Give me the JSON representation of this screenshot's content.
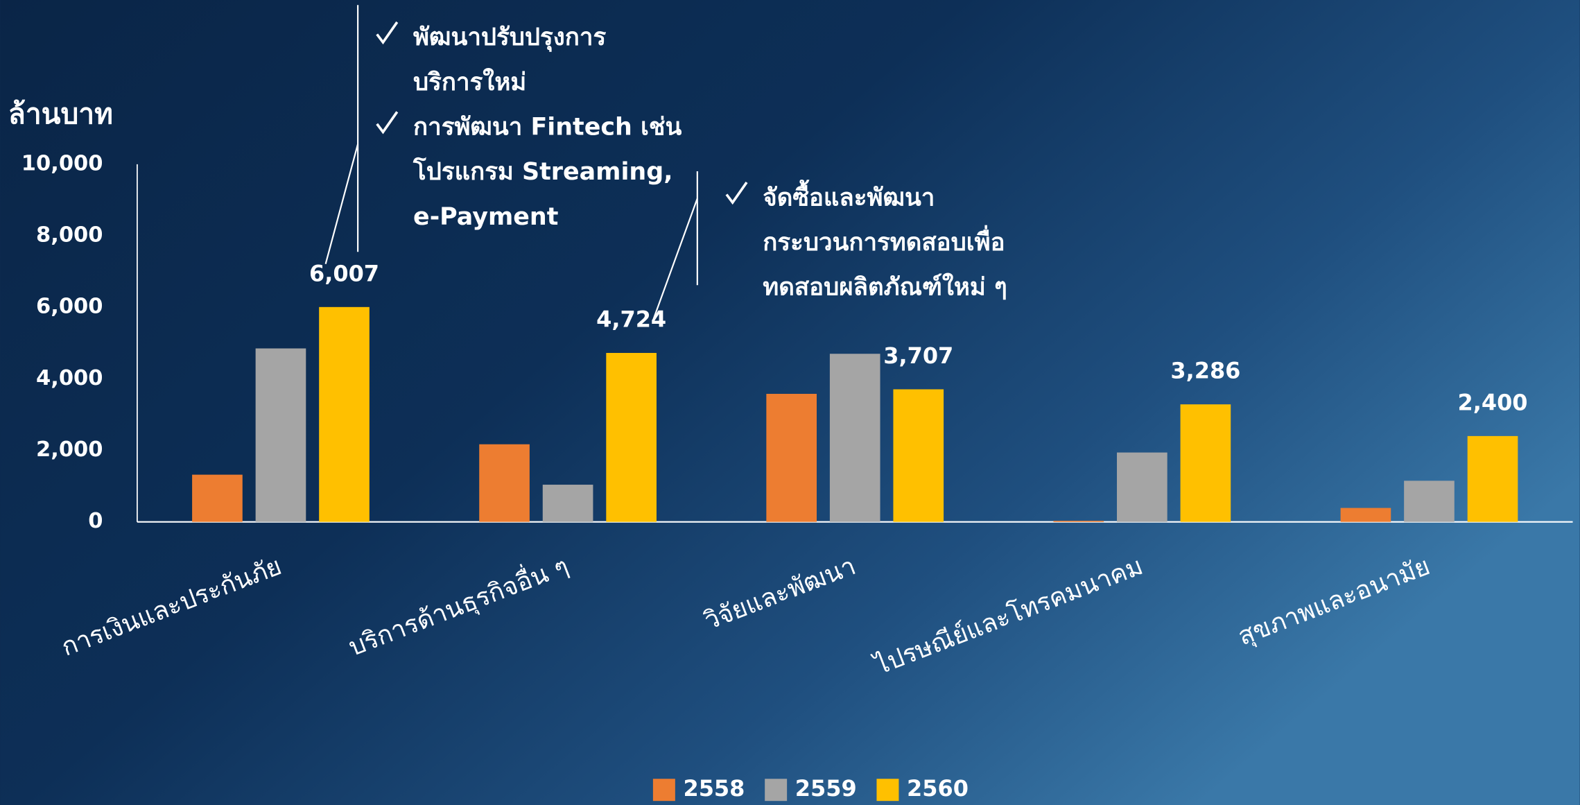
{
  "chart_data": {
    "type": "bar",
    "y_label": "ล้านบาท",
    "categories": [
      "การเงินและประกันภัย",
      "บริการด้านธุรกิจอื่น ๆ",
      "วิจัยและพัฒนา",
      "ไปรษณีย์และโทรคมนาคม",
      "สุขภาพและอนามัย"
    ],
    "series": [
      {
        "name": "2558",
        "color": "#ed7d31",
        "values": [
          1320,
          2170,
          3580,
          30,
          390
        ]
      },
      {
        "name": "2559",
        "color": "#a5a5a5",
        "values": [
          4850,
          1040,
          4700,
          1940,
          1150
        ]
      },
      {
        "name": "2560",
        "color": "#ffc000",
        "values": [
          6007,
          4724,
          3707,
          3286,
          2400
        ],
        "value_labels": [
          "6,007",
          "4,724",
          "3,707",
          "3,286",
          "2,400"
        ]
      }
    ],
    "ylim": [
      0,
      10000
    ],
    "yticks": [
      0,
      {
        "value": 2000,
        "label": "2,000"
      },
      {
        "value": 4000,
        "label": "4,000"
      },
      {
        "value": 6000,
        "label": "6,000"
      },
      {
        "value": 8000,
        "label": "8,000"
      },
      {
        "value": 10000,
        "label": "10,000"
      }
    ],
    "grid": false,
    "legend": "bottom",
    "annotations": [
      {
        "bullets": [
          [
            "พัฒนาปรับปรุงการ",
            "บริการใหม่"
          ],
          [
            "การพัฒนา Fintech เช่น",
            "โปรแกรม Streaming,",
            "e-Payment"
          ]
        ]
      },
      {
        "bullets": [
          [
            "จัดซื้อและพัฒนา",
            "กระบวนการทดสอบเพื่อ",
            "ทดสอบผลิตภัณฑ์ใหม่ ๆ"
          ]
        ]
      }
    ]
  }
}
